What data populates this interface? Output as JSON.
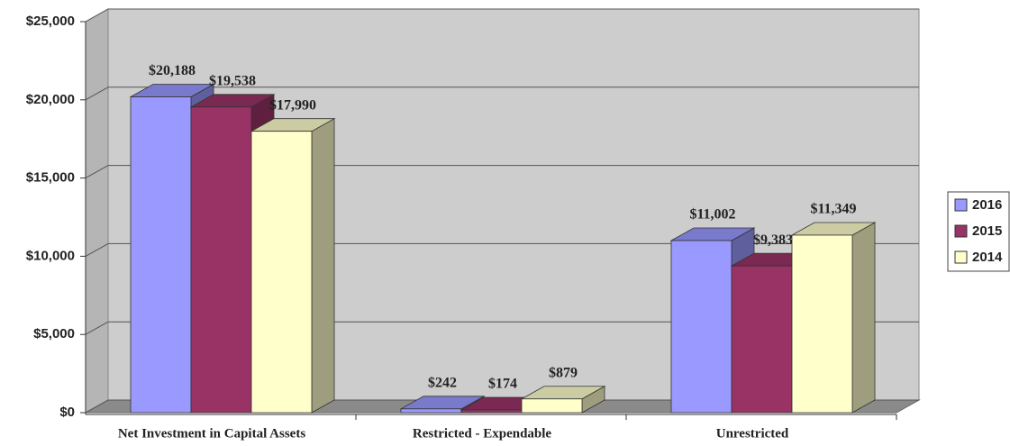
{
  "chart_data": {
    "type": "bar3d",
    "categories": [
      "Net Investment in Capital Assets",
      "Restricted - Expendable",
      "Unrestricted"
    ],
    "series": [
      {
        "name": "2016",
        "color": "#9999ff",
        "values": [
          20188,
          242,
          11002
        ],
        "value_labels": [
          "$20,188",
          "$242",
          "$11,002"
        ]
      },
      {
        "name": "2015",
        "color": "#993366",
        "values": [
          19538,
          174,
          9383
        ],
        "value_labels": [
          "$19,538",
          "$174",
          "$9,383"
        ]
      },
      {
        "name": "2014",
        "color": "#ffffcc",
        "values": [
          17990,
          879,
          11349
        ],
        "value_labels": [
          "$17,990",
          "$879",
          "$11,349"
        ]
      }
    ],
    "ylim": [
      0,
      25000
    ],
    "yticks": [
      {
        "value": 0,
        "label": "$0"
      },
      {
        "value": 5000,
        "label": "$5,000"
      },
      {
        "value": 10000,
        "label": "$10,000"
      },
      {
        "value": 15000,
        "label": "$15,000"
      },
      {
        "value": 20000,
        "label": "$20,000"
      },
      {
        "value": 25000,
        "label": "$25,000"
      }
    ],
    "grid": true,
    "legend": "right"
  }
}
